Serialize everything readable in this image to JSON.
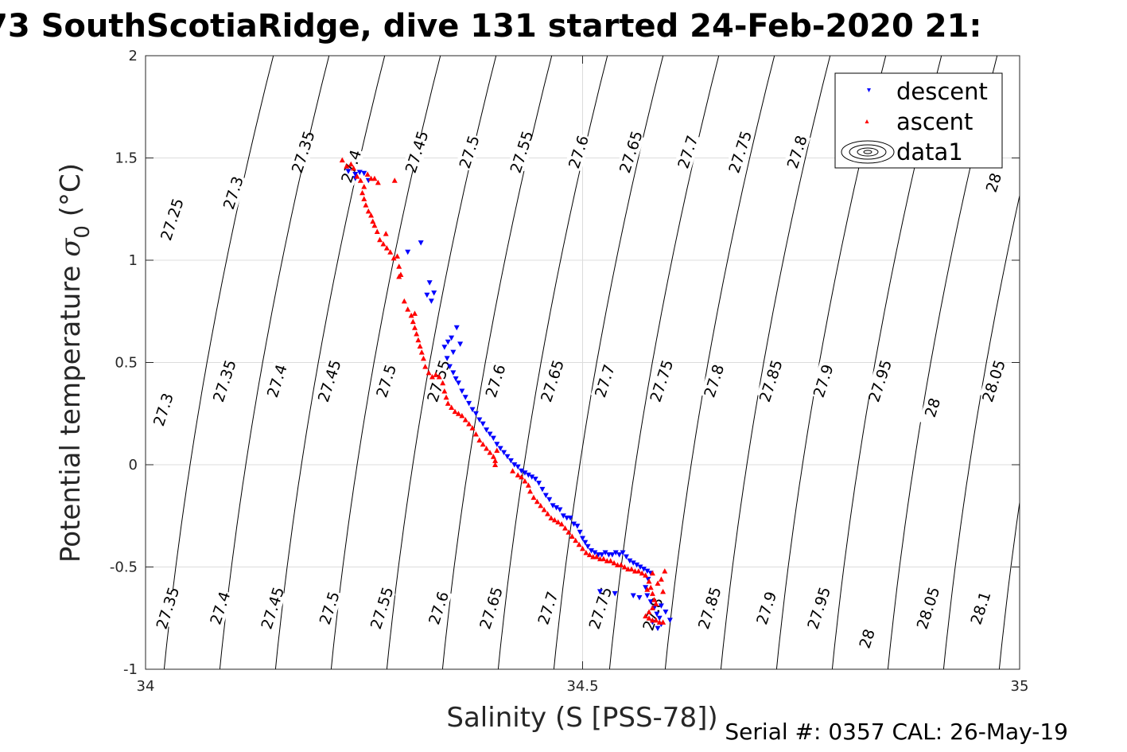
{
  "chart_data": {
    "type": "scatter",
    "title": "73 SouthScotiaRidge, dive 131 started 24-Feb-2020 21:",
    "xlabel": "Salinity (S [PSS-78])",
    "ylabel_main": "Potential temperature ",
    "ylabel_symbol": "σ",
    "ylabel_sub": "0",
    "ylabel_unit": " (°C)",
    "xlim": [
      34,
      35
    ],
    "ylim": [
      -1,
      2
    ],
    "xticks": [
      34,
      34.5,
      35
    ],
    "xtick_labels": [
      "34",
      "34.5",
      "35"
    ],
    "yticks": [
      -1,
      -0.5,
      0,
      0.5,
      1,
      1.5,
      2
    ],
    "ytick_labels": [
      "-1",
      "-0.5",
      "0",
      "0.5",
      "1",
      "1.5",
      "2"
    ],
    "grid": true,
    "legend_position": "top-right",
    "legend": [
      "descent",
      "ascent",
      "data1"
    ],
    "contour_levels": [
      27.2,
      27.25,
      27.3,
      27.35,
      27.4,
      27.45,
      27.5,
      27.55,
      27.6,
      27.65,
      27.7,
      27.75,
      27.8,
      27.85,
      27.9,
      27.95,
      28,
      28.05,
      28.1,
      28.15
    ],
    "contour_labels": [
      {
        "text": "27.25",
        "s": 34.03,
        "t": 1.2
      },
      {
        "text": "27.3",
        "s": 34.1,
        "t": 1.33
      },
      {
        "text": "27.35",
        "s": 34.18,
        "t": 1.53
      },
      {
        "text": "27.4",
        "s": 34.235,
        "t": 1.46
      },
      {
        "text": "27.45",
        "s": 34.31,
        "t": 1.53
      },
      {
        "text": "27.5",
        "s": 34.37,
        "t": 1.53
      },
      {
        "text": "27.55",
        "s": 34.43,
        "t": 1.53
      },
      {
        "text": "27.6",
        "s": 34.495,
        "t": 1.53
      },
      {
        "text": "27.65",
        "s": 34.555,
        "t": 1.53
      },
      {
        "text": "27.7",
        "s": 34.62,
        "t": 1.53
      },
      {
        "text": "27.75",
        "s": 34.68,
        "t": 1.53
      },
      {
        "text": "27.8",
        "s": 34.745,
        "t": 1.53
      },
      {
        "text": "28",
        "s": 34.97,
        "t": 1.38
      },
      {
        "text": "27.3",
        "s": 34.02,
        "t": 0.27
      },
      {
        "text": "27.35",
        "s": 34.09,
        "t": 0.41
      },
      {
        "text": "27.4",
        "s": 34.15,
        "t": 0.41
      },
      {
        "text": "27.45",
        "s": 34.21,
        "t": 0.41
      },
      {
        "text": "27.5",
        "s": 34.275,
        "t": 0.41
      },
      {
        "text": "27.55",
        "s": 34.335,
        "t": 0.41
      },
      {
        "text": "27.6",
        "s": 34.4,
        "t": 0.41
      },
      {
        "text": "27.65",
        "s": 34.465,
        "t": 0.41
      },
      {
        "text": "27.7",
        "s": 34.525,
        "t": 0.41
      },
      {
        "text": "27.75",
        "s": 34.59,
        "t": 0.41
      },
      {
        "text": "27.8",
        "s": 34.65,
        "t": 0.41
      },
      {
        "text": "27.85",
        "s": 34.715,
        "t": 0.41
      },
      {
        "text": "27.9",
        "s": 34.775,
        "t": 0.41
      },
      {
        "text": "27.95",
        "s": 34.84,
        "t": 0.41
      },
      {
        "text": "28",
        "s": 34.9,
        "t": 0.28
      },
      {
        "text": "28.05",
        "s": 34.97,
        "t": 0.41
      },
      {
        "text": "27.35",
        "s": 34.025,
        "t": -0.7
      },
      {
        "text": "27.4",
        "s": 34.085,
        "t": -0.7
      },
      {
        "text": "27.45",
        "s": 34.145,
        "t": -0.7
      },
      {
        "text": "27.5",
        "s": 34.21,
        "t": -0.7
      },
      {
        "text": "27.55",
        "s": 34.27,
        "t": -0.7
      },
      {
        "text": "27.6",
        "s": 34.335,
        "t": -0.7
      },
      {
        "text": "27.65",
        "s": 34.395,
        "t": -0.7
      },
      {
        "text": "27.7",
        "s": 34.46,
        "t": -0.7
      },
      {
        "text": "27.75",
        "s": 34.52,
        "t": -0.7
      },
      {
        "text": "27.8",
        "s": 34.58,
        "t": -0.73
      },
      {
        "text": "27.85",
        "s": 34.645,
        "t": -0.7
      },
      {
        "text": "27.9",
        "s": 34.71,
        "t": -0.7
      },
      {
        "text": "27.95",
        "s": 34.77,
        "t": -0.7
      },
      {
        "text": "28",
        "s": 34.825,
        "t": -0.85
      },
      {
        "text": "28.05",
        "s": 34.895,
        "t": -0.7
      },
      {
        "text": "28.1",
        "s": 34.955,
        "t": -0.7
      }
    ],
    "series": [
      {
        "name": "descent",
        "color": "#0000ff",
        "marker": "triangle-down",
        "points": [
          [
            34.232,
            1.435
          ],
          [
            34.24,
            1.42
          ],
          [
            34.245,
            1.43
          ],
          [
            34.25,
            1.425
          ],
          [
            34.255,
            1.39
          ],
          [
            34.24,
            1.4
          ],
          [
            34.3,
            1.04
          ],
          [
            34.315,
            1.085
          ],
          [
            34.325,
            0.89
          ],
          [
            34.33,
            0.84
          ],
          [
            34.322,
            0.83
          ],
          [
            34.327,
            0.8
          ],
          [
            34.342,
            0.575
          ],
          [
            34.346,
            0.6
          ],
          [
            34.35,
            0.62
          ],
          [
            34.356,
            0.67
          ],
          [
            34.36,
            0.59
          ],
          [
            34.352,
            0.55
          ],
          [
            34.345,
            0.52
          ],
          [
            34.348,
            0.48
          ],
          [
            34.352,
            0.45
          ],
          [
            34.355,
            0.42
          ],
          [
            34.358,
            0.4
          ],
          [
            34.362,
            0.36
          ],
          [
            34.366,
            0.33
          ],
          [
            34.37,
            0.3
          ],
          [
            34.374,
            0.27
          ],
          [
            34.378,
            0.25
          ],
          [
            34.382,
            0.22
          ],
          [
            34.386,
            0.2
          ],
          [
            34.39,
            0.17
          ],
          [
            34.394,
            0.15
          ],
          [
            34.398,
            0.13
          ],
          [
            34.402,
            0.1
          ],
          [
            34.406,
            0.08
          ],
          [
            34.41,
            0.06
          ],
          [
            34.414,
            0.04
          ],
          [
            34.418,
            0.02
          ],
          [
            34.422,
            0.0
          ],
          [
            34.426,
            -0.01
          ],
          [
            34.43,
            -0.03
          ],
          [
            34.434,
            -0.04
          ],
          [
            34.438,
            -0.05
          ],
          [
            34.442,
            -0.06
          ],
          [
            34.446,
            -0.07
          ],
          [
            34.45,
            -0.09
          ],
          [
            34.454,
            -0.12
          ],
          [
            34.458,
            -0.15
          ],
          [
            34.462,
            -0.17
          ],
          [
            34.466,
            -0.2
          ],
          [
            34.47,
            -0.21
          ],
          [
            34.474,
            -0.22
          ],
          [
            34.478,
            -0.25
          ],
          [
            34.482,
            -0.26
          ],
          [
            34.486,
            -0.26
          ],
          [
            34.49,
            -0.29
          ],
          [
            34.494,
            -0.3
          ],
          [
            34.497,
            -0.33
          ],
          [
            34.5,
            -0.36
          ],
          [
            34.503,
            -0.38
          ],
          [
            34.506,
            -0.4
          ],
          [
            34.51,
            -0.42
          ],
          [
            34.514,
            -0.43
          ],
          [
            34.518,
            -0.44
          ],
          [
            34.522,
            -0.44
          ],
          [
            34.526,
            -0.43
          ],
          [
            34.53,
            -0.44
          ],
          [
            34.534,
            -0.44
          ],
          [
            34.538,
            -0.43
          ],
          [
            34.542,
            -0.44
          ],
          [
            34.546,
            -0.43
          ],
          [
            34.55,
            -0.45
          ],
          [
            34.554,
            -0.47
          ],
          [
            34.558,
            -0.48
          ],
          [
            34.562,
            -0.49
          ],
          [
            34.566,
            -0.5
          ],
          [
            34.57,
            -0.51
          ],
          [
            34.574,
            -0.52
          ],
          [
            34.578,
            -0.53
          ],
          [
            34.575,
            -0.56
          ],
          [
            34.572,
            -0.6
          ],
          [
            34.574,
            -0.64
          ],
          [
            34.578,
            -0.67
          ],
          [
            34.582,
            -0.7
          ],
          [
            34.585,
            -0.73
          ],
          [
            34.588,
            -0.75
          ],
          [
            34.59,
            -0.78
          ],
          [
            34.586,
            -0.8
          ],
          [
            34.58,
            -0.77
          ],
          [
            34.59,
            -0.69
          ],
          [
            34.537,
            -0.63
          ],
          [
            34.558,
            -0.64
          ],
          [
            34.565,
            -0.65
          ],
          [
            34.52,
            -0.62
          ],
          [
            34.595,
            -0.72
          ],
          [
            34.6,
            -0.76
          ]
        ]
      },
      {
        "name": "ascent",
        "color": "#ff0000",
        "marker": "triangle-up",
        "points": [
          [
            34.225,
            1.49
          ],
          [
            34.23,
            1.46
          ],
          [
            34.235,
            1.47
          ],
          [
            34.238,
            1.45
          ],
          [
            34.242,
            1.41
          ],
          [
            34.246,
            1.39
          ],
          [
            34.25,
            1.36
          ],
          [
            34.254,
            1.42
          ],
          [
            34.258,
            1.4
          ],
          [
            34.262,
            1.4
          ],
          [
            34.266,
            1.38
          ],
          [
            34.248,
            1.33
          ],
          [
            34.25,
            1.3
          ],
          [
            34.252,
            1.27
          ],
          [
            34.255,
            1.24
          ],
          [
            34.258,
            1.22
          ],
          [
            34.26,
            1.19
          ],
          [
            34.262,
            1.17
          ],
          [
            34.265,
            1.14
          ],
          [
            34.268,
            1.1
          ],
          [
            34.272,
            1.08
          ],
          [
            34.276,
            1.06
          ],
          [
            34.28,
            1.04
          ],
          [
            34.284,
            1.01
          ],
          [
            34.288,
            1.02
          ],
          [
            34.29,
            0.97
          ],
          [
            34.292,
            0.93
          ],
          [
            34.296,
            0.8
          ],
          [
            34.3,
            0.76
          ],
          [
            34.304,
            0.73
          ],
          [
            34.306,
            0.7
          ],
          [
            34.308,
            0.67
          ],
          [
            34.31,
            0.64
          ],
          [
            34.312,
            0.61
          ],
          [
            34.314,
            0.58
          ],
          [
            34.316,
            0.55
          ],
          [
            34.318,
            0.52
          ],
          [
            34.32,
            0.48
          ],
          [
            34.324,
            0.45
          ],
          [
            34.328,
            0.43
          ],
          [
            34.332,
            0.44
          ],
          [
            34.336,
            0.43
          ],
          [
            34.34,
            0.4
          ],
          [
            34.342,
            0.36
          ],
          [
            34.344,
            0.33
          ],
          [
            34.346,
            0.3
          ],
          [
            34.35,
            0.28
          ],
          [
            34.354,
            0.26
          ],
          [
            34.358,
            0.25
          ],
          [
            34.362,
            0.24
          ],
          [
            34.366,
            0.22
          ],
          [
            34.37,
            0.2
          ],
          [
            34.374,
            0.18
          ],
          [
            34.378,
            0.15
          ],
          [
            34.382,
            0.12
          ],
          [
            34.386,
            0.1
          ],
          [
            34.39,
            0.08
          ],
          [
            34.394,
            0.06
          ],
          [
            34.398,
            0.04
          ],
          [
            34.4,
            0.02
          ],
          [
            34.4,
            0.0
          ],
          [
            34.402,
            0.07
          ],
          [
            34.42,
            -0.03
          ],
          [
            34.426,
            -0.05
          ],
          [
            34.43,
            -0.06
          ],
          [
            34.434,
            -0.08
          ],
          [
            34.438,
            -0.1
          ],
          [
            34.44,
            -0.13
          ],
          [
            34.444,
            -0.16
          ],
          [
            34.448,
            -0.18
          ],
          [
            34.452,
            -0.2
          ],
          [
            34.456,
            -0.22
          ],
          [
            34.46,
            -0.24
          ],
          [
            34.464,
            -0.26
          ],
          [
            34.468,
            -0.27
          ],
          [
            34.472,
            -0.28
          ],
          [
            34.476,
            -0.29
          ],
          [
            34.48,
            -0.31
          ],
          [
            34.484,
            -0.33
          ],
          [
            34.488,
            -0.35
          ],
          [
            34.492,
            -0.37
          ],
          [
            34.496,
            -0.39
          ],
          [
            34.5,
            -0.41
          ],
          [
            34.504,
            -0.43
          ],
          [
            34.508,
            -0.44
          ],
          [
            34.512,
            -0.45
          ],
          [
            34.516,
            -0.45
          ],
          [
            34.52,
            -0.46
          ],
          [
            34.524,
            -0.46
          ],
          [
            34.528,
            -0.47
          ],
          [
            34.532,
            -0.47
          ],
          [
            34.536,
            -0.48
          ],
          [
            34.54,
            -0.49
          ],
          [
            34.544,
            -0.49
          ],
          [
            34.548,
            -0.5
          ],
          [
            34.552,
            -0.51
          ],
          [
            34.556,
            -0.51
          ],
          [
            34.56,
            -0.52
          ],
          [
            34.564,
            -0.52
          ],
          [
            34.568,
            -0.53
          ],
          [
            34.572,
            -0.54
          ],
          [
            34.576,
            -0.57
          ],
          [
            34.578,
            -0.6
          ],
          [
            34.58,
            -0.63
          ],
          [
            34.582,
            -0.66
          ],
          [
            34.584,
            -0.68
          ],
          [
            34.58,
            -0.7
          ],
          [
            34.576,
            -0.72
          ],
          [
            34.572,
            -0.74
          ],
          [
            34.576,
            -0.75
          ],
          [
            34.58,
            -0.76
          ],
          [
            34.584,
            -0.76
          ],
          [
            34.588,
            -0.77
          ],
          [
            34.592,
            -0.77
          ],
          [
            34.586,
            -0.58
          ],
          [
            34.59,
            -0.56
          ],
          [
            34.592,
            -0.62
          ],
          [
            34.594,
            -0.52
          ],
          [
            34.58,
            -0.53
          ],
          [
            34.574,
            -0.61
          ],
          [
            34.285,
            1.39
          ],
          [
            34.275,
            1.13
          ],
          [
            34.29,
            0.92
          ],
          [
            34.308,
            0.74
          ]
        ]
      }
    ]
  },
  "footer": {
    "serial_text": "Serial #: 0357  CAL: 26-May-19"
  }
}
